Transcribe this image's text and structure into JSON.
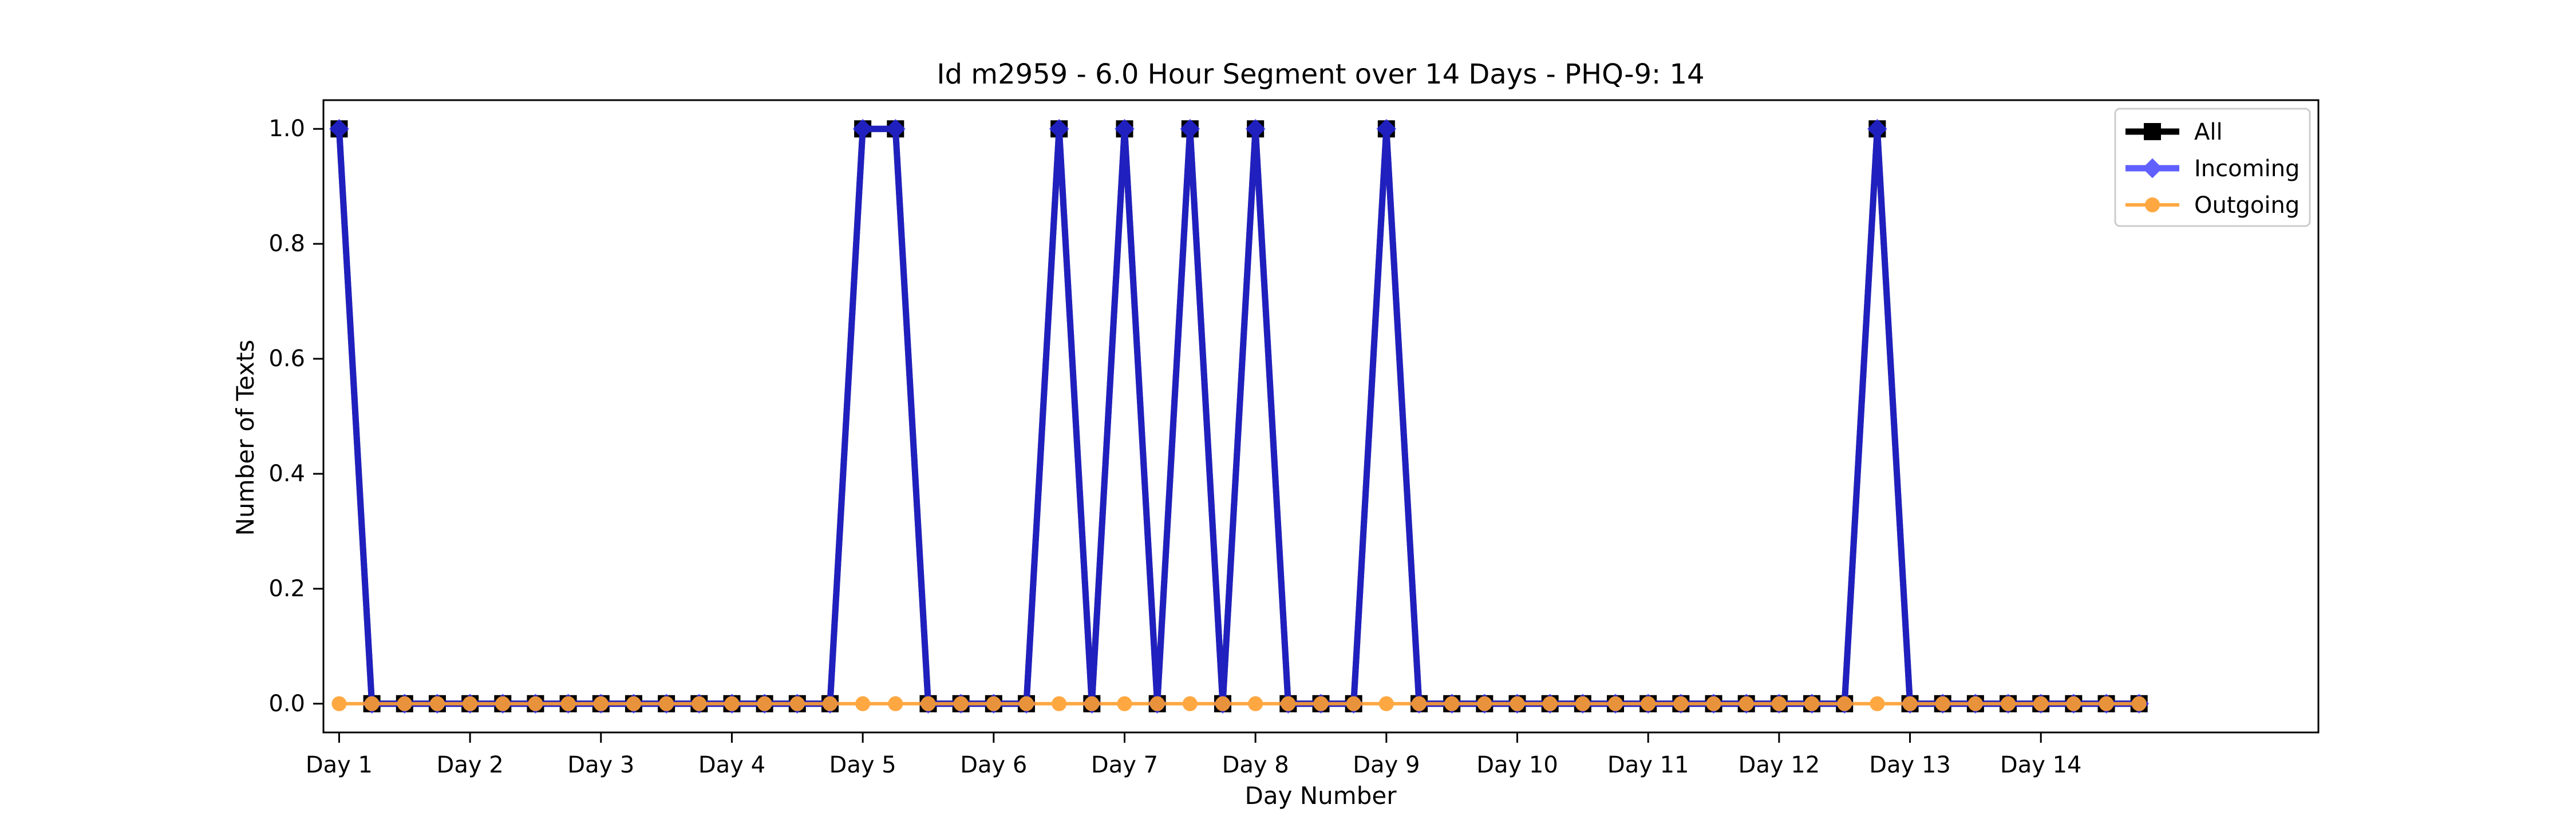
{
  "chart_data": {
    "type": "line",
    "title": "Id m2959 - 6.0 Hour Segment over 14 Days - PHQ-9: 14",
    "xlabel": "Day Number",
    "ylabel": "Number of Texts",
    "xlim": [
      -0.12,
      15.12
    ],
    "ylim": [
      -0.05,
      1.05
    ],
    "grid": false,
    "legend_position": "top-right",
    "x_ticks": [
      0,
      1,
      2,
      3,
      4,
      5,
      6,
      7,
      8,
      9,
      10,
      11,
      12,
      13
    ],
    "x_tick_labels": [
      "Day 1",
      "Day 2",
      "Day 3",
      "Day 4",
      "Day 5",
      "Day 6",
      "Day 7",
      "Day 8",
      "Day 9",
      "Day 10",
      "Day 11",
      "Day 12",
      "Day 13",
      "Day 14"
    ],
    "y_ticks": [
      0.0,
      0.2,
      0.4,
      0.6,
      0.8,
      1.0
    ],
    "y_tick_labels": [
      "0.0",
      "0.2",
      "0.4",
      "0.6",
      "0.8",
      "1.0"
    ],
    "x": [
      0,
      0.25,
      0.5,
      0.75,
      1,
      1.25,
      1.5,
      1.75,
      2,
      2.25,
      2.5,
      2.75,
      3,
      3.25,
      3.5,
      3.75,
      4,
      4.25,
      4.5,
      4.75,
      5,
      5.25,
      5.5,
      5.75,
      6,
      6.25,
      6.5,
      6.75,
      7,
      7.25,
      7.5,
      7.75,
      8,
      8.25,
      8.5,
      8.75,
      9,
      9.25,
      9.5,
      9.75,
      10,
      10.25,
      10.5,
      10.75,
      11,
      11.25,
      11.5,
      11.75,
      12,
      12.25,
      12.5,
      12.75,
      13,
      13.25,
      13.5,
      13.75
    ],
    "series": [
      {
        "name": "All",
        "color": "#000000",
        "marker": "square",
        "values": [
          1,
          0,
          0,
          0,
          0,
          0,
          0,
          0,
          0,
          0,
          0,
          0,
          0,
          0,
          0,
          0,
          1,
          1,
          0,
          0,
          0,
          0,
          1,
          0,
          1,
          0,
          1,
          0,
          1,
          0,
          0,
          0,
          1,
          0,
          0,
          0,
          0,
          0,
          0,
          0,
          0,
          0,
          0,
          0,
          0,
          0,
          0,
          1,
          0,
          0,
          0,
          0,
          0,
          0,
          0,
          0
        ]
      },
      {
        "name": "Incoming",
        "color": "#2b2bff",
        "marker": "diamond",
        "values": [
          1,
          0,
          0,
          0,
          0,
          0,
          0,
          0,
          0,
          0,
          0,
          0,
          0,
          0,
          0,
          0,
          1,
          1,
          0,
          0,
          0,
          0,
          1,
          0,
          1,
          0,
          1,
          0,
          1,
          0,
          0,
          0,
          1,
          0,
          0,
          0,
          0,
          0,
          0,
          0,
          0,
          0,
          0,
          0,
          0,
          0,
          0,
          1,
          0,
          0,
          0,
          0,
          0,
          0,
          0,
          0
        ]
      },
      {
        "name": "Outgoing",
        "color": "#ff9f2e",
        "marker": "circle",
        "values": [
          0,
          0,
          0,
          0,
          0,
          0,
          0,
          0,
          0,
          0,
          0,
          0,
          0,
          0,
          0,
          0,
          0,
          0,
          0,
          0,
          0,
          0,
          0,
          0,
          0,
          0,
          0,
          0,
          0,
          0,
          0,
          0,
          0,
          0,
          0,
          0,
          0,
          0,
          0,
          0,
          0,
          0,
          0,
          0,
          0,
          0,
          0,
          0,
          0,
          0,
          0,
          0,
          0,
          0,
          0,
          0
        ]
      }
    ]
  }
}
